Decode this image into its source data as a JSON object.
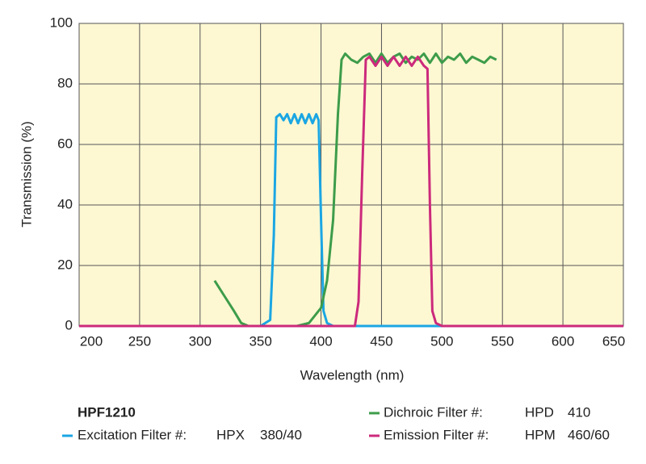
{
  "chart_data": {
    "type": "line",
    "x_label": "Wavelength (nm)",
    "y_label": "Transmission (%)",
    "set_name": "HPF1210",
    "xlim": [
      200,
      650
    ],
    "xticks": [
      200,
      250,
      300,
      350,
      400,
      450,
      500,
      550,
      600,
      650
    ],
    "ylim": [
      0,
      100
    ],
    "yticks": [
      0,
      20,
      40,
      60,
      80,
      100
    ],
    "grid": true,
    "series": [
      {
        "name": "Excitation Filter #:",
        "code": "HPX",
        "spec": "380/40",
        "color": "#1ba6e3",
        "x": [
          200,
          350,
          358,
          361,
          363,
          366,
          369,
          372,
          375,
          378,
          381,
          384,
          387,
          390,
          393,
          396,
          398,
          400,
          402,
          405,
          410,
          650
        ],
        "values": [
          0,
          0,
          2,
          30,
          69,
          70,
          68,
          70,
          67,
          70,
          67,
          70,
          67,
          70,
          67,
          70,
          68,
          35,
          5,
          1,
          0,
          0
        ]
      },
      {
        "name": "Dichroic Filter #:",
        "code": "HPD",
        "spec": "410",
        "color": "#3d9c4a",
        "x": [
          312,
          320,
          328,
          334,
          340,
          380,
          390,
          400,
          405,
          410,
          414,
          417,
          420,
          425,
          430,
          435,
          440,
          445,
          450,
          455,
          460,
          465,
          470,
          475,
          480,
          485,
          490,
          495,
          500,
          505,
          510,
          515,
          520,
          525,
          530,
          535,
          540,
          545
        ],
        "values": [
          15,
          10,
          5,
          1,
          0,
          0,
          1,
          6,
          15,
          35,
          70,
          88,
          90,
          88,
          87,
          89,
          90,
          87,
          90,
          87,
          89,
          90,
          87,
          89,
          88,
          90,
          87,
          90,
          87,
          89,
          88,
          90,
          87,
          89,
          88,
          87,
          89,
          88
        ]
      },
      {
        "name": "Emission Filter #:",
        "code": "HPM",
        "spec": "460/60",
        "color": "#cc2a7c",
        "x": [
          200,
          428,
          431,
          434,
          437,
          440,
          445,
          450,
          455,
          460,
          465,
          470,
          475,
          480,
          485,
          488,
          490,
          492,
          495,
          500,
          650
        ],
        "values": [
          0,
          0,
          8,
          50,
          88,
          89,
          86,
          89,
          86,
          89,
          86,
          89,
          86,
          89,
          86,
          85,
          40,
          5,
          1,
          0,
          0
        ]
      }
    ]
  }
}
